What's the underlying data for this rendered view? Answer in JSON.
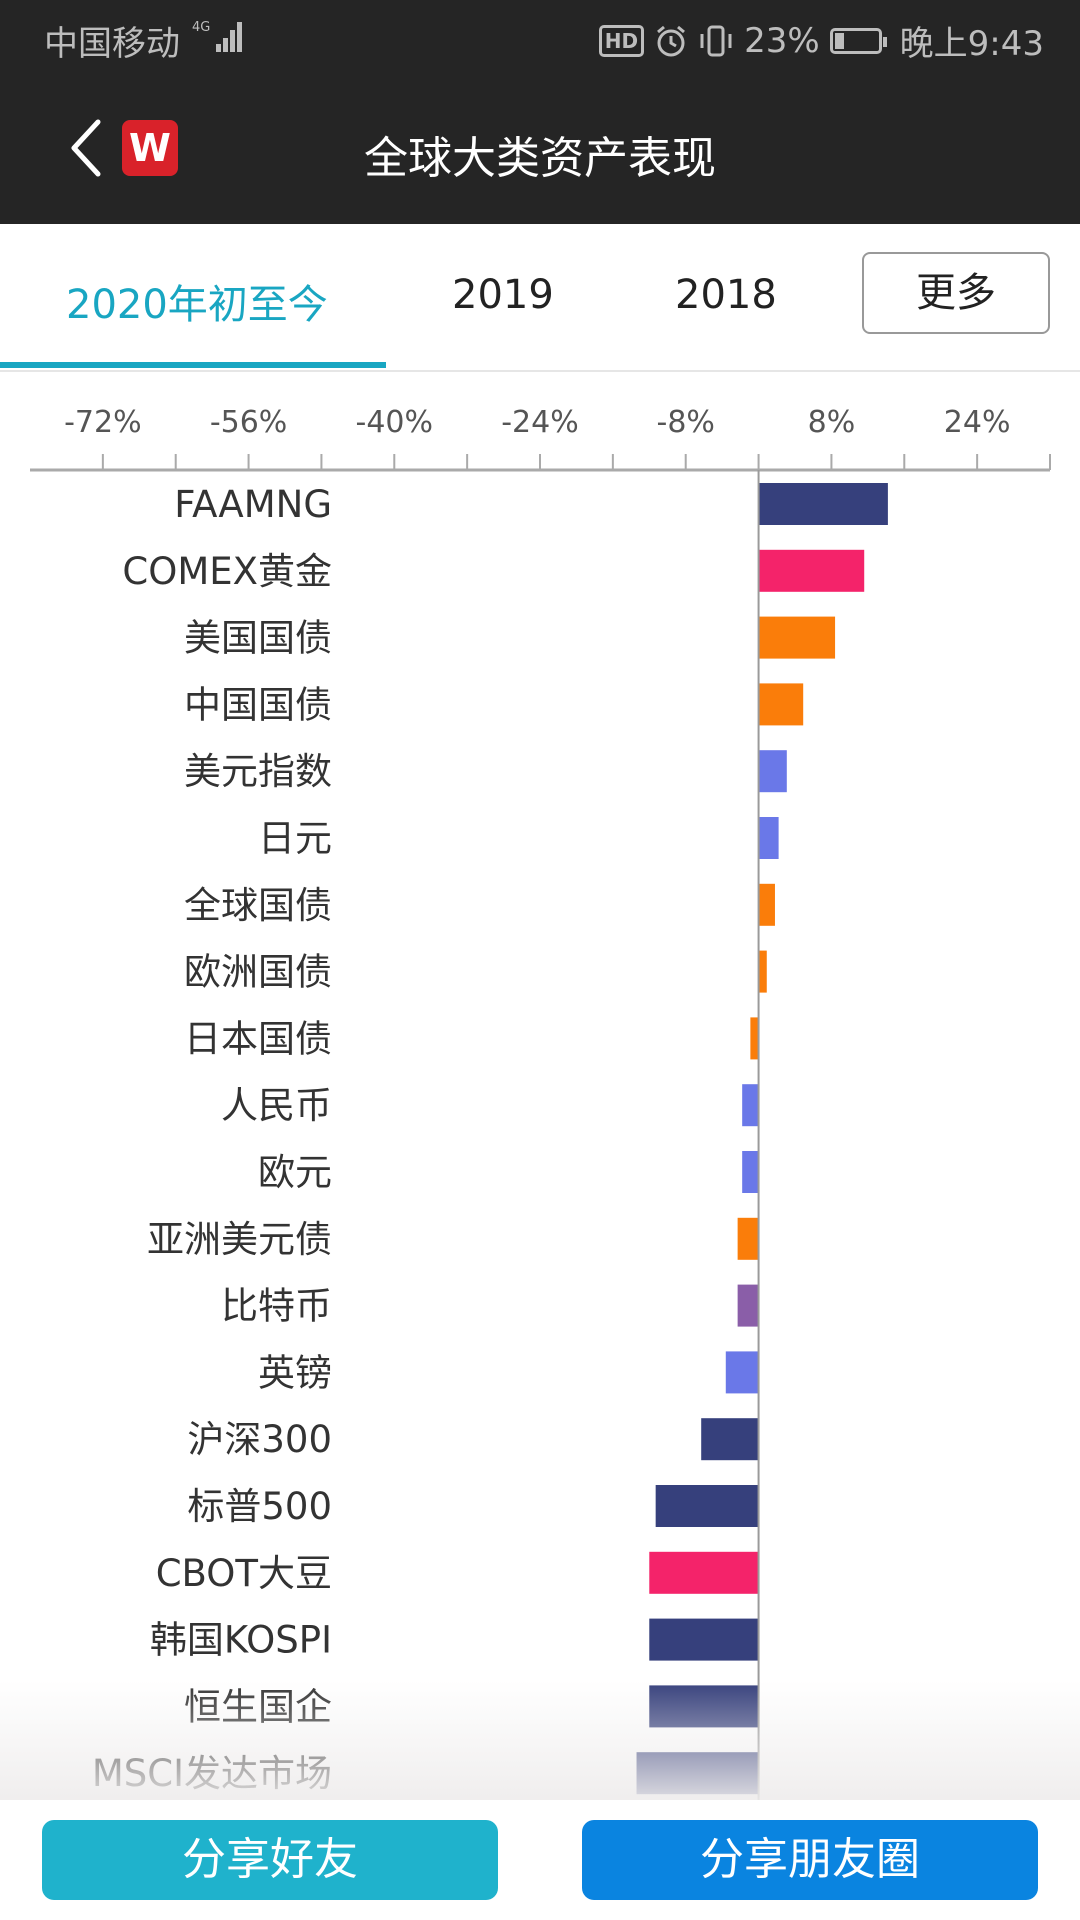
{
  "status_bar": {
    "carrier": "中国移动",
    "network": "4G",
    "hd_label": "HD",
    "battery": "23%",
    "battery_level": 0.23,
    "time": "晚上9:43"
  },
  "header": {
    "logo_letter": "W",
    "title": "全球大类资产表现"
  },
  "tabs": {
    "items": [
      "2020年初至今",
      "2019",
      "2018"
    ],
    "active": 0,
    "more_label": "更多"
  },
  "chart_data": {
    "type": "bar",
    "orientation": "horizontal",
    "x_ticks": [
      "-72%",
      "-56%",
      "-40%",
      "-24%",
      "-8%",
      "8%",
      "24%"
    ],
    "x_tick_values": [
      -72,
      -56,
      -40,
      -24,
      -8,
      8,
      24
    ],
    "xlim": [
      -80,
      32
    ],
    "categories": [
      "FAAMNG",
      "COMEX黄金",
      "美国国债",
      "中国国债",
      "美元指数",
      "日元",
      "全球国债",
      "欧洲国债",
      "日本国债",
      "人民币",
      "欧元",
      "亚洲美元债",
      "比特币",
      "英镑",
      "沪深300",
      "标普500",
      "CBOT大豆",
      "韩国KOSPI",
      "恒生国企",
      "MSCI发达市场"
    ],
    "values": [
      14.2,
      11.6,
      8.4,
      4.9,
      3.1,
      2.2,
      1.8,
      0.9,
      -0.9,
      -1.8,
      -1.8,
      -2.3,
      -2.3,
      -3.6,
      -6.3,
      -11.3,
      -12.0,
      -12.0,
      -12.0,
      -13.4
    ],
    "colors": [
      "#36407c",
      "#f4236a",
      "#fa7d0a",
      "#fa7d0a",
      "#6a78e8",
      "#6a78e8",
      "#fa7d0a",
      "#fa7d0a",
      "#fa7d0a",
      "#6a78e8",
      "#6a78e8",
      "#fa7d0a",
      "#8a5ea8",
      "#6a78e8",
      "#36407c",
      "#36407c",
      "#f4236a",
      "#36407c",
      "#36407c",
      "#36407c"
    ]
  },
  "bottom": {
    "share_friend": "分享好友",
    "share_moments": "分享朋友圈"
  }
}
